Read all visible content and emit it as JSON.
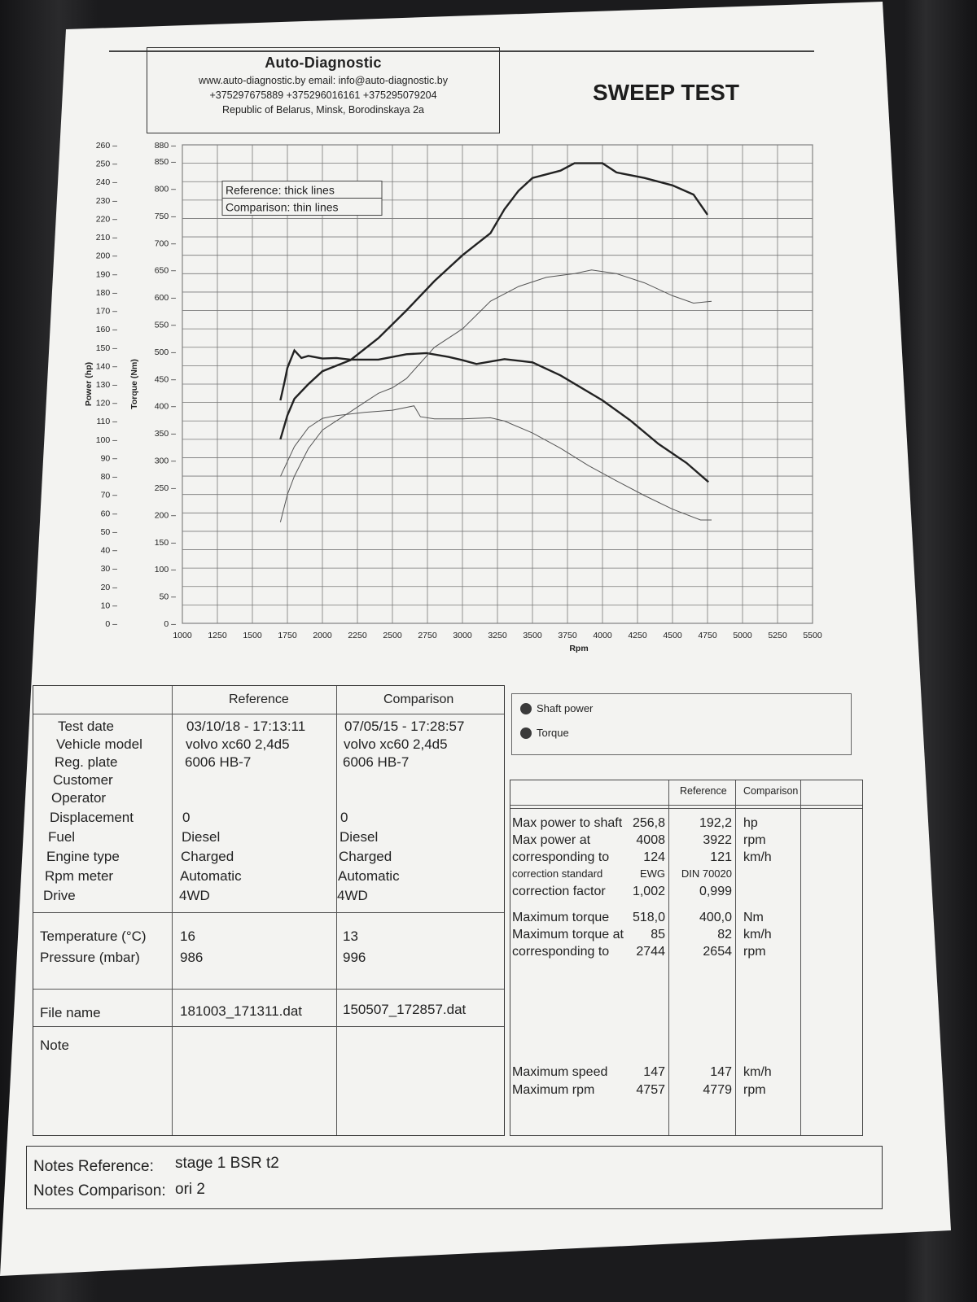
{
  "header": {
    "company": "Auto-Diagnostic",
    "contacts": "www.auto-diagnostic.by   email: info@auto-diagnostic.by",
    "phones": "+375297675889  +375296016161  +375295079204",
    "address": "Republic of Belarus, Minsk, Borodinskaya 2a",
    "title": "SWEEP TEST"
  },
  "chart_data": {
    "type": "line",
    "xlabel": "Rpm",
    "ylabel_left": "Power (hp)",
    "ylabel_right": "Torque (Nm)",
    "xlim": [
      1000,
      5500
    ],
    "ylim_power": [
      0,
      260
    ],
    "ylim_torque": [
      0,
      880
    ],
    "x_ticks": [
      "1000",
      "1250",
      "1500",
      "1750",
      "2000",
      "2250",
      "2500",
      "2750",
      "3000",
      "3250",
      "3500",
      "3750",
      "4000",
      "4250",
      "4500",
      "4750",
      "5000",
      "5250",
      "5500"
    ],
    "power_ticks": [
      "0",
      "10",
      "20",
      "30",
      "40",
      "50",
      "60",
      "70",
      "80",
      "90",
      "100",
      "110",
      "120",
      "130",
      "140",
      "150",
      "160",
      "170",
      "180",
      "190",
      "200",
      "210",
      "220",
      "230",
      "240",
      "250",
      "260"
    ],
    "torque_ticks": [
      "0",
      "50",
      "100",
      "150",
      "200",
      "250",
      "300",
      "350",
      "400",
      "450",
      "500",
      "550",
      "600",
      "650",
      "700",
      "750",
      "800",
      "850",
      "880"
    ],
    "legend_note": [
      "Reference: thick lines",
      "Comparison: thin lines"
    ],
    "grid": true,
    "series": [
      {
        "name": "Shaft power",
        "set": "Reference",
        "axis": "power",
        "x": [
          1700,
          1750,
          1800,
          1900,
          2000,
          2100,
          2200,
          2400,
          2600,
          2800,
          3000,
          3100,
          3200,
          3300,
          3400,
          3500,
          3700,
          3800,
          4000,
          4100,
          4300,
          4500,
          4650,
          4750
        ],
        "y": [
          100,
          113,
          122,
          130,
          137,
          140,
          143,
          155,
          170,
          186,
          200,
          206,
          212,
          225,
          235,
          242,
          246,
          250,
          250,
          245,
          242,
          238,
          233,
          222
        ]
      },
      {
        "name": "Torque",
        "set": "Reference",
        "axis": "torque",
        "x": [
          1700,
          1730,
          1750,
          1800,
          1850,
          1900,
          2000,
          2100,
          2200,
          2400,
          2600,
          2744,
          2900,
          3000,
          3100,
          3300,
          3500,
          3700,
          4000,
          4200,
          4400,
          4600,
          4757
        ],
        "y": [
          410,
          445,
          470,
          502,
          488,
          492,
          487,
          488,
          485,
          485,
          495,
          497,
          490,
          484,
          477,
          486,
          480,
          456,
          410,
          373,
          330,
          295,
          260
        ]
      },
      {
        "name": "Shaft power",
        "set": "Comparison",
        "axis": "power",
        "x": [
          1700,
          1750,
          1800,
          1900,
          2000,
          2100,
          2200,
          2300,
          2400,
          2500,
          2600,
          2800,
          3000,
          3200,
          3400,
          3600,
          3800,
          3922,
          4100,
          4300,
          4500,
          4650,
          4779
        ],
        "y": [
          55,
          70,
          80,
          95,
          105,
          110,
          115,
          120,
          125,
          128,
          133,
          150,
          160,
          175,
          183,
          188,
          190,
          192,
          190,
          185,
          178,
          174,
          175
        ]
      },
      {
        "name": "Torque",
        "set": "Comparison",
        "axis": "torque",
        "x": [
          1700,
          1800,
          1900,
          2000,
          2100,
          2300,
          2500,
          2654,
          2700,
          2800,
          3000,
          3200,
          3300,
          3500,
          3700,
          3900,
          4100,
          4300,
          4500,
          4700,
          4779
        ],
        "y": [
          270,
          325,
          360,
          377,
          382,
          388,
          392,
          400,
          380,
          376,
          376,
          378,
          372,
          350,
          322,
          290,
          262,
          235,
          210,
          190,
          190
        ]
      }
    ]
  },
  "table": {
    "col_reference": "Reference",
    "col_comparison": "Comparison",
    "rows": [
      {
        "label": "Test date",
        "ref": "03/10/18 - 17:13:11",
        "cmp": "07/05/15 - 17:28:57"
      },
      {
        "label": "Vehicle model",
        "ref": "volvo xc60 2,4d5",
        "cmp": "volvo xc60 2,4d5"
      },
      {
        "label": "Reg. plate",
        "ref": "6006 HB-7",
        "cmp": "6006 HB-7"
      },
      {
        "label": "Customer",
        "ref": "",
        "cmp": ""
      },
      {
        "label": "Operator",
        "ref": "",
        "cmp": ""
      },
      {
        "label": "Displacement",
        "ref": "0",
        "cmp": "0"
      },
      {
        "label": "Fuel",
        "ref": "Diesel",
        "cmp": "Diesel"
      },
      {
        "label": "Engine type",
        "ref": "Charged",
        "cmp": "Charged"
      },
      {
        "label": "Rpm meter",
        "ref": "Automatic",
        "cmp": "Automatic"
      },
      {
        "label": "Drive",
        "ref": "4WD",
        "cmp": "4WD"
      }
    ],
    "env": [
      {
        "label": "Temperature (°C)",
        "ref": "16",
        "cmp": "13"
      },
      {
        "label": "Pressure (mbar)",
        "ref": "986",
        "cmp": "996"
      }
    ],
    "file": {
      "label": "File name",
      "ref": "181003_171311.dat",
      "cmp": "150507_172857.dat"
    },
    "note_label": "Note"
  },
  "legend": {
    "items": [
      "Shaft power",
      "Torque"
    ],
    "color": "#3a3a3a"
  },
  "results": {
    "col_reference": "Reference",
    "col_comparison": "Comparison",
    "block1": [
      {
        "label": "Max power to shaft",
        "ref": "256,8",
        "cmp": "192,2",
        "unit": "hp"
      },
      {
        "label": "Max power at",
        "ref": "4008",
        "cmp": "3922",
        "unit": "rpm"
      },
      {
        "label": "corresponding to",
        "ref": "124",
        "cmp": "121",
        "unit": "km/h"
      },
      {
        "label": "correction standard",
        "ref": "EWG",
        "cmp": "DIN 70020",
        "unit": ""
      },
      {
        "label": "correction factor",
        "ref": "1,002",
        "cmp": "0,999",
        "unit": ""
      }
    ],
    "block2": [
      {
        "label": "Maximum torque",
        "ref": "518,0",
        "cmp": "400,0",
        "unit": "Nm"
      },
      {
        "label": "Maximum torque at",
        "ref": "85",
        "cmp": "82",
        "unit": "km/h"
      },
      {
        "label": "corresponding to",
        "ref": "2744",
        "cmp": "2654",
        "unit": "rpm"
      }
    ],
    "block3": [
      {
        "label": "Maximum speed",
        "ref": "147",
        "cmp": "147",
        "unit": "km/h"
      },
      {
        "label": "Maximum rpm",
        "ref": "4757",
        "cmp": "4779",
        "unit": "rpm"
      }
    ]
  },
  "notes": {
    "reference_label": "Notes Reference:",
    "reference_value": "stage 1 BSR t2",
    "comparison_label": "Notes Comparison:",
    "comparison_value": "ori 2"
  }
}
